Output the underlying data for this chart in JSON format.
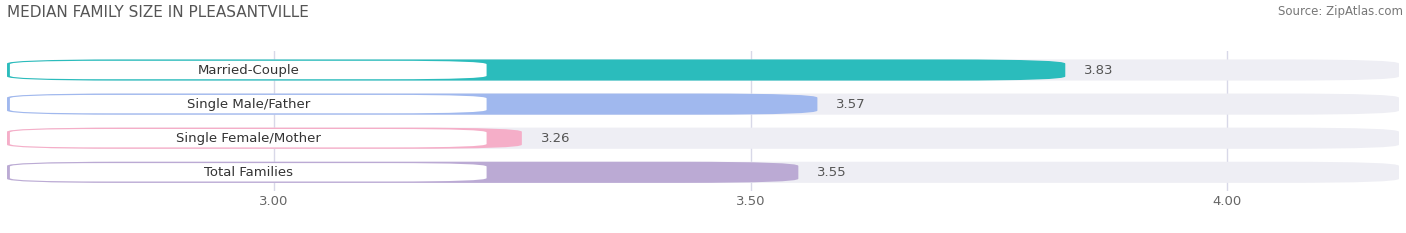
{
  "title": "MEDIAN FAMILY SIZE IN PLEASANTVILLE",
  "source": "Source: ZipAtlas.com",
  "categories": [
    "Married-Couple",
    "Single Male/Father",
    "Single Female/Mother",
    "Total Families"
  ],
  "values": [
    3.83,
    3.57,
    3.26,
    3.55
  ],
  "bar_colors": [
    "#2bbcbc",
    "#a0b8ee",
    "#f5aec8",
    "#bbaad4"
  ],
  "xlim": [
    2.72,
    4.18
  ],
  "xticks": [
    3.0,
    3.5,
    4.0
  ],
  "xtick_labels": [
    "3.00",
    "3.50",
    "4.00"
  ],
  "label_fontsize": 9.5,
  "title_fontsize": 11,
  "source_fontsize": 8.5,
  "value_fontsize": 9.5,
  "bar_height": 0.62,
  "background_color": "#ffffff",
  "bar_bg_color": "#eeeef4",
  "grid_color": "#d8d8e8"
}
